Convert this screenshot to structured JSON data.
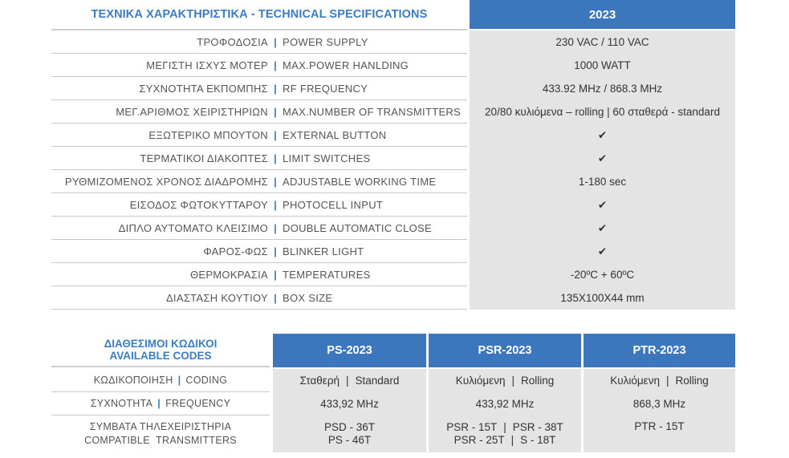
{
  "specs": {
    "title": "ΤΕΧΝΙΚΑ ΧΑΡΑΚΤΗΡΙΣΤΙΚΑ - TECHNICAL SPECIFICATIONS",
    "model": "2023",
    "separator": "|",
    "rows": [
      {
        "gr": "ΤΡΟΦΟΔΟΣΙΑ",
        "en": "POWER SUPPLY",
        "value": "230 VAC / 110 VAC"
      },
      {
        "gr": "ΜΕΓΙΣΤΗ ΙΣΧΥΣ ΜΟΤΕΡ",
        "en": "MAX.POWER HANLDING",
        "value": "1000 WATT"
      },
      {
        "gr": "ΣΥΧΝΟΤΗΤΑ ΕΚΠΟΜΠΗΣ",
        "en": "RF FREQUENCY",
        "value": "433.92 MHz / 868.3 MHz"
      },
      {
        "gr": "ΜΕΓ.ΑΡΙΘΜΟΣ ΧΕΙΡΙΣΤΗΡΙΩΝ",
        "en": "MAX.NUMBER OF TRANSMITTERS",
        "value": "20/80 κυλιόμενα – rolling | 60 σταθερά - standard"
      },
      {
        "gr": "ΕΞΩΤΕΡΙΚΟ ΜΠΟΥΤΟΝ",
        "en": "EXTERNAL BUTTON",
        "value": "✔"
      },
      {
        "gr": "ΤΕΡΜΑΤΙΚΟΙ ΔΙΑΚΟΠΤΕΣ",
        "en": "LIMIT SWITCHES",
        "value": "✔"
      },
      {
        "gr": "ΡΥΘΜΙΖΟΜΕΝΟΣ ΧΡΟΝΟΣ ΔΙΑΔΡΟΜΗΣ",
        "en": "ADJUSTABLE WORKING TIME",
        "value": "1-180 sec"
      },
      {
        "gr": "ΕΙΣΟΔΟΣ ΦΩΤΟΚΥΤΤΑΡΟΥ",
        "en": "PHOTOCELL INPUT",
        "value": "✔"
      },
      {
        "gr": "ΔΙΠΛΟ ΑΥΤΟΜΑΤΟ ΚΛΕΙΣΙΜΟ",
        "en": "DOUBLE AUTOMATIC CLOSE",
        "value": "✔"
      },
      {
        "gr": "ΦΑΡΟΣ-ΦΩΣ",
        "en": "BLINKER LIGHT",
        "value": "✔"
      },
      {
        "gr": "ΘΕΡΜΟΚΡΑΣΙΑ",
        "en": "TEMPERATURES",
        "value": "-20ºC + 60ºC"
      },
      {
        "gr": "ΔΙΑΣΤΑΣΗ ΚΟΥΤΙΟΥ",
        "en": "BOX SIZE",
        "value": "135X100X44 mm"
      }
    ]
  },
  "codes": {
    "title_gr": "ΔΙΑΘΕΣΙΜΟΙ ΚΩΔΙΚΟΙ",
    "title_en": "AVAILABLE CODES",
    "separator": "|",
    "models": [
      "PS-2023",
      "PSR-2023",
      "PTR-2023"
    ],
    "coding": {
      "gr": "ΚΩΔΙΚΟΠΟΙΗΣΗ",
      "en": "CODING",
      "values": [
        {
          "a": "Σταθερή",
          "b": "Standard"
        },
        {
          "a": "Κυλιόμενη",
          "b": "Rolling"
        },
        {
          "a": "Κυλιόμενη",
          "b": "Rolling"
        }
      ]
    },
    "frequency": {
      "gr": "ΣΥΧΝΟΤΗΤΑ",
      "en": "FREQUENCY",
      "values": [
        "433,92 MHz",
        "433,92 MHz",
        "868,3 MHz"
      ]
    },
    "transmitters": {
      "gr": "ΣΥΜΒΑΤΑ ΤΗΛΕΧΕΙΡΙΣΤΗΡΙΑ",
      "en": "COMPATIBLE  TRANSMITTERS",
      "ps": {
        "line1": "PSD - 36T",
        "line2": "PS - 46T"
      },
      "psr": {
        "l1a": "PSR - 15T",
        "l1b": "PSR - 38T",
        "l2a": "PSR - 25T",
        "l2b": "S - 18T"
      },
      "ptr": {
        "line1": "PTR - 15T"
      }
    }
  }
}
